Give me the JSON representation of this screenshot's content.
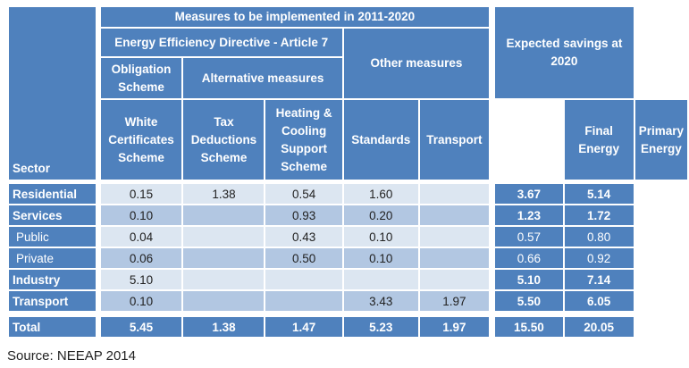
{
  "header": {
    "sector": "Sector",
    "measures": "Measures to be implemented in 2011-2020",
    "eed": "Energy Efficiency Directive - Article 7",
    "other": "Other measures",
    "expected": "Expected savings at 2020",
    "obligation": "Obligation Scheme",
    "alternative": "Alternative measures",
    "columns": [
      "White Certificates Scheme",
      "Tax Deductions Scheme",
      "Heating & Cooling Support Scheme",
      "Standards",
      "Transport",
      "Final Energy",
      "Primary Energy"
    ]
  },
  "rows": [
    {
      "sector": "Residential",
      "values": [
        "0.15",
        "1.38",
        "0.54",
        "1.60",
        "",
        "3.67",
        "5.14"
      ]
    },
    {
      "sector": "Services",
      "values": [
        "0.10",
        "",
        "0.93",
        "0.20",
        "",
        "1.23",
        "1.72"
      ]
    },
    {
      "sector": "Public",
      "values": [
        "0.04",
        "",
        "0.43",
        "0.10",
        "",
        "0.57",
        "0.80"
      ]
    },
    {
      "sector": "Private",
      "values": [
        "0.06",
        "",
        "0.50",
        "0.10",
        "",
        "0.66",
        "0.92"
      ]
    },
    {
      "sector": "Industry",
      "values": [
        "5.10",
        "",
        "",
        "",
        "",
        "5.10",
        "7.14"
      ]
    },
    {
      "sector": "Transport",
      "values": [
        "0.10",
        "",
        "",
        "3.43",
        "1.97",
        "5.50",
        "6.05"
      ]
    }
  ],
  "total": {
    "sector": "Total",
    "values": [
      "5.45",
      "1.38",
      "1.47",
      "5.23",
      "1.97",
      "15.50",
      "20.05"
    ]
  },
  "source": "Source: NEEAP 2014"
}
